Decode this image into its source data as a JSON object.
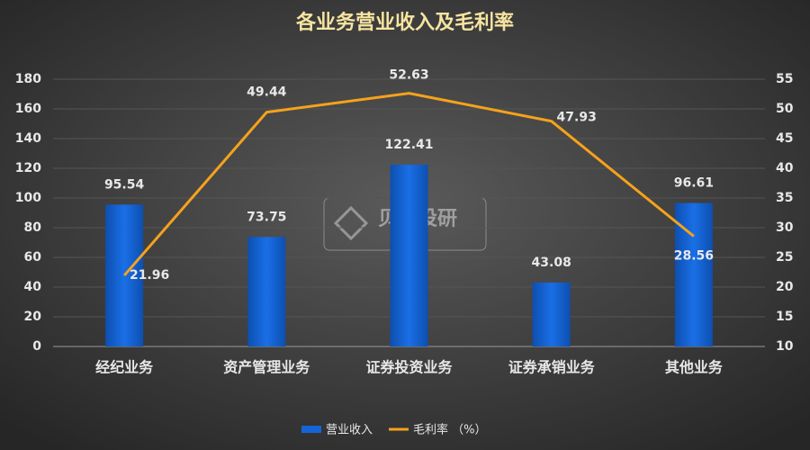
{
  "chart_data": {
    "type": "bar-line",
    "title": "各业务营业收入及毛利率",
    "watermark": "贝壳投研",
    "categories": [
      "经纪业务",
      "资产管理业务",
      "证券投资业务",
      "证券承销业务",
      "其他业务"
    ],
    "series": [
      {
        "name": "营业收入",
        "type": "bar",
        "color": "#1565d8",
        "values": [
          95.54,
          73.75,
          122.41,
          43.08,
          96.61
        ]
      },
      {
        "name": "毛利率 （%）",
        "type": "line",
        "axis": "y2",
        "color": "#f5a21b",
        "values": [
          21.96,
          49.44,
          52.63,
          47.93,
          28.56
        ]
      }
    ],
    "ylim": [
      0,
      180
    ],
    "yticks": [
      0,
      20,
      40,
      60,
      80,
      100,
      120,
      140,
      160,
      180
    ],
    "y2lim": [
      10,
      55
    ],
    "y2ticks": [
      10,
      15,
      20,
      25,
      30,
      35,
      40,
      45,
      50,
      55
    ],
    "grid": true,
    "legend": "bottom"
  }
}
